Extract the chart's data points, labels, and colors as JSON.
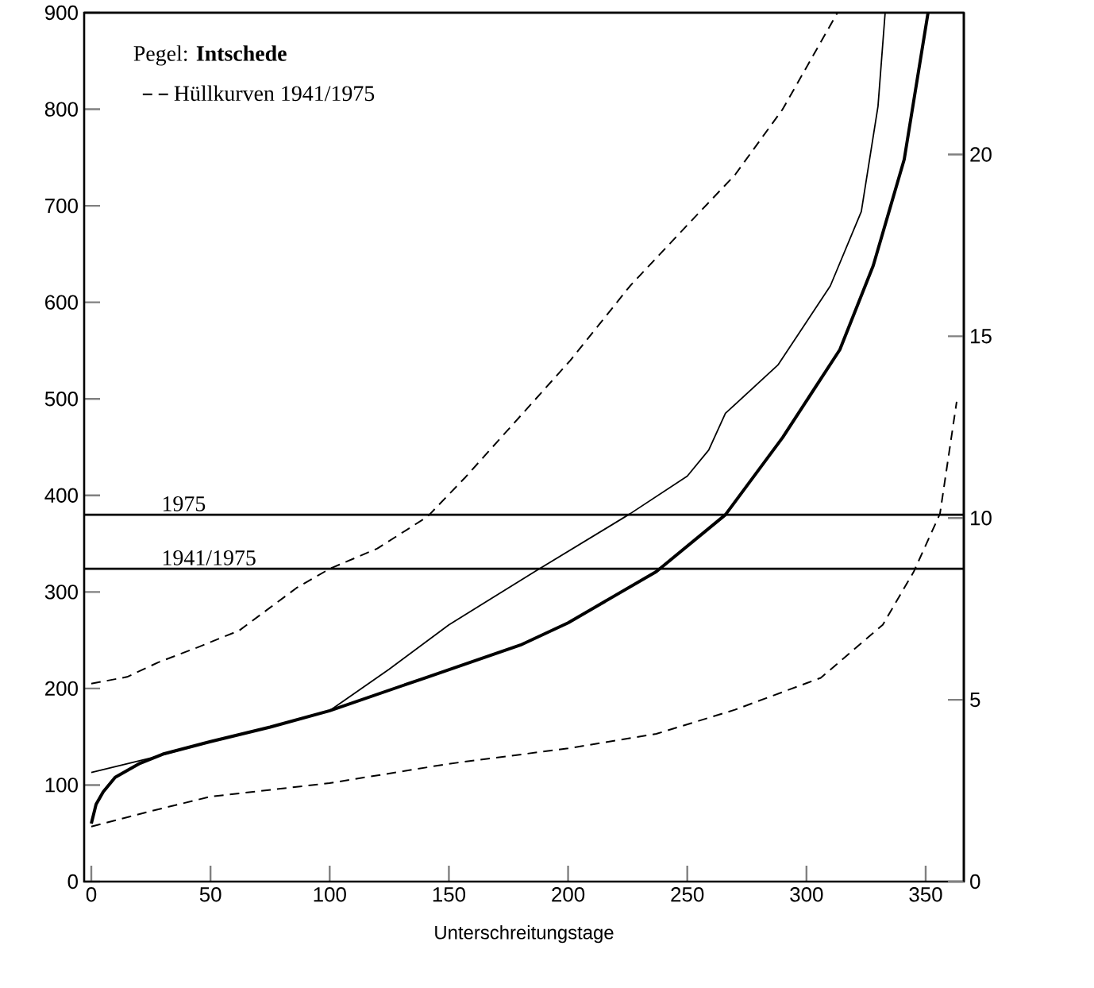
{
  "chart_data": {
    "type": "line",
    "legend_title": "Pegel: **Intschede**",
    "xlabel": "Unterschreitungstage",
    "legend": "top left",
    "xlim": [
      -3,
      366
    ],
    "xticks": [
      0,
      50,
      100,
      150,
      200,
      250,
      300,
      350
    ],
    "ylim": [
      0,
      900
    ],
    "yticks": [
      0,
      100,
      200,
      300,
      400,
      500,
      600,
      700,
      800,
      900
    ],
    "y2lim": [
      0,
      23.9
    ],
    "y2ticks": [
      0,
      5,
      10,
      15,
      20
    ],
    "series": [
      {
        "color": "#000000",
        "line_style": "solid",
        "x": [
          0,
          2,
          5,
          10,
          20,
          30,
          50,
          75,
          100,
          140,
          180,
          200,
          237,
          266,
          290,
          314,
          328,
          341,
          351
        ],
        "values": [
          60,
          80,
          93,
          108,
          122,
          132,
          145,
          160,
          177,
          211,
          245,
          268,
          321,
          380,
          460,
          551,
          638,
          748,
          900
        ]
      },
      {
        "color": "#000000",
        "line_style": "solid",
        "x": [
          0,
          25,
          50,
          75,
          100,
          125,
          150,
          186,
          226,
          250,
          259,
          266,
          288,
          310,
          323,
          330,
          333
        ],
        "values": [
          113,
          128,
          145,
          160,
          177,
          220,
          266,
          321,
          381,
          420,
          447,
          485,
          535,
          617,
          694,
          803,
          900
        ]
      },
      {
        "name": "Hüllkurven 1941/1975",
        "color": "#000000",
        "line_style": "dashed",
        "x": [
          0,
          15,
          28,
          45,
          62,
          86,
          100,
          120,
          141,
          157,
          181,
          201,
          226,
          250,
          270,
          290,
          313
        ],
        "values": [
          205,
          212,
          227,
          243,
          260,
          304,
          324,
          345,
          378,
          419,
          485,
          540,
          617,
          680,
          732,
          800,
          900
        ]
      },
      {
        "color": "#000000",
        "line_style": "dashed",
        "x": [
          0,
          25,
          50,
          100,
          150,
          200,
          237,
          270,
          306,
          332,
          345,
          356,
          363
        ],
        "values": [
          57,
          73,
          88,
          102,
          122,
          138,
          153,
          178,
          211,
          266,
          321,
          381,
          497
        ]
      }
    ],
    "ref_lines": [
      {
        "axis": "y",
        "value": 380
      },
      {
        "axis": "y",
        "value": 324
      }
    ],
    "annotations": [
      {
        "text": "1975",
        "x": 28,
        "y": 380
      },
      {
        "text": "1941/1975",
        "x": 28,
        "y": 324
      }
    ]
  }
}
